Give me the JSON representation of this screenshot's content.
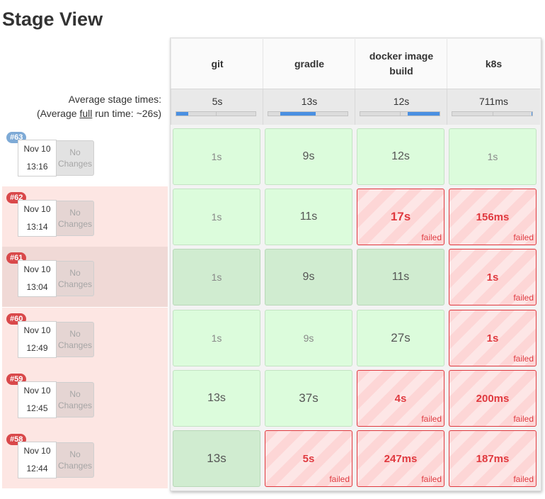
{
  "title": "Stage View",
  "avg_label": "Average stage times:",
  "full_run": {
    "prefix": "(Average ",
    "link": "full",
    "suffix": " run time: ~26s)"
  },
  "failed_label": "failed",
  "no_changes": [
    "No",
    "Changes"
  ],
  "stages": [
    {
      "name": "git",
      "avg": "5s",
      "bar": [
        0.0,
        0.15
      ]
    },
    {
      "name": "gradle",
      "avg": "13s",
      "bar": [
        0.15,
        0.6
      ]
    },
    {
      "name": "docker image build",
      "avg": "12s",
      "bar": [
        0.6,
        1.0
      ]
    },
    {
      "name": "k8s",
      "avg": "711ms",
      "bar": [
        0.99,
        1.0
      ]
    }
  ],
  "colors": {
    "bar": "#4a90e2",
    "failed": "#e0393f",
    "success": "#dcfcdc"
  },
  "builds": [
    {
      "id": "#63",
      "date": "Nov 10",
      "time": "13:16",
      "badge": "blue",
      "row": "white",
      "cells": [
        {
          "v": "1s",
          "s": "ok",
          "light": true
        },
        {
          "v": "9s",
          "s": "ok"
        },
        {
          "v": "12s",
          "s": "ok"
        },
        {
          "v": "1s",
          "s": "ok",
          "light": true
        }
      ]
    },
    {
      "id": "#62",
      "date": "Nov 10",
      "time": "13:14",
      "badge": "red",
      "row": "pink",
      "cells": [
        {
          "v": "1s",
          "s": "ok",
          "light": true
        },
        {
          "v": "11s",
          "s": "ok"
        },
        {
          "v": "17s",
          "s": "fail",
          "big": true
        },
        {
          "v": "156ms",
          "s": "fail"
        }
      ]
    },
    {
      "id": "#61",
      "date": "Nov 10",
      "time": "13:04",
      "badge": "red",
      "row": "darkpink",
      "cells": [
        {
          "v": "1s",
          "s": "okdark",
          "light": true
        },
        {
          "v": "9s",
          "s": "okdark"
        },
        {
          "v": "11s",
          "s": "okdark"
        },
        {
          "v": "1s",
          "s": "fail"
        }
      ]
    },
    {
      "id": "#60",
      "date": "Nov 10",
      "time": "12:49",
      "badge": "red",
      "row": "pink",
      "cells": [
        {
          "v": "1s",
          "s": "ok",
          "light": true
        },
        {
          "v": "9s",
          "s": "ok",
          "light": true
        },
        {
          "v": "27s",
          "s": "ok",
          "big": true
        },
        {
          "v": "1s",
          "s": "fail"
        }
      ]
    },
    {
      "id": "#59",
      "date": "Nov 10",
      "time": "12:45",
      "badge": "red",
      "row": "pink",
      "cells": [
        {
          "v": "13s",
          "s": "ok"
        },
        {
          "v": "37s",
          "s": "ok",
          "big": true
        },
        {
          "v": "4s",
          "s": "fail"
        },
        {
          "v": "200ms",
          "s": "fail"
        }
      ]
    },
    {
      "id": "#58",
      "date": "Nov 10",
      "time": "12:44",
      "badge": "red",
      "row": "pink",
      "cells": [
        {
          "v": "13s",
          "s": "okdark",
          "big": true
        },
        {
          "v": "5s",
          "s": "fail"
        },
        {
          "v": "247ms",
          "s": "fail"
        },
        {
          "v": "187ms",
          "s": "fail"
        }
      ]
    }
  ]
}
